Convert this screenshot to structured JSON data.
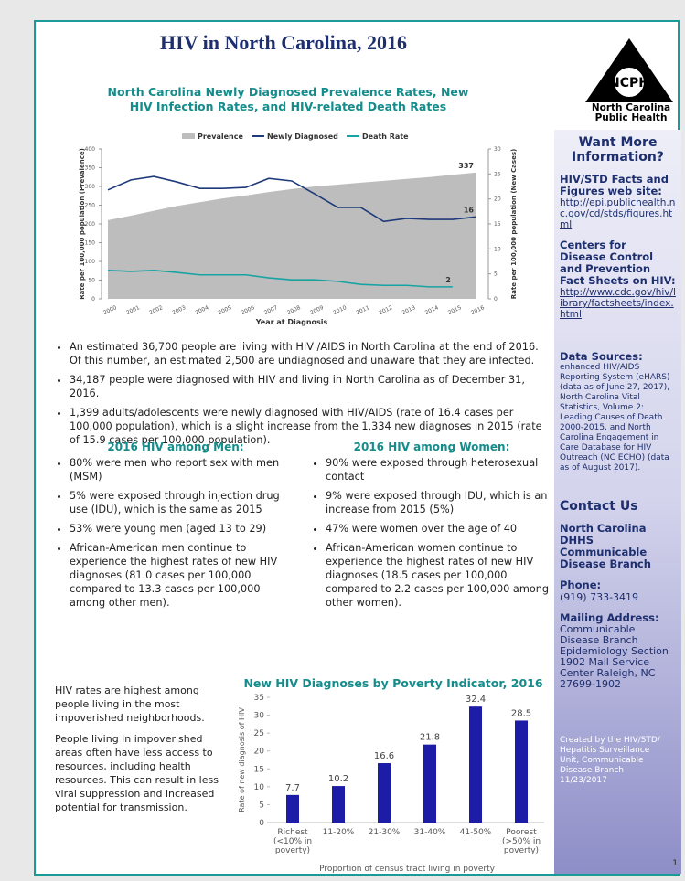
{
  "header": {
    "title": "HIV in North Carolina, 2016"
  },
  "logo": {
    "abbr": "NCPH",
    "name": "North Carolina Public Health"
  },
  "chart_data": [
    {
      "type": "area-line",
      "title": "North Carolina Newly Diagnosed Prevalence Rates, New HIV Infection Rates, and HIV-related Death Rates",
      "x_label": "Year at Diagnosis",
      "y_label": "Rate per 100,000 population (Prevalence)",
      "y2_label": "Rate per 100,000 population (New Cases)",
      "categories": [
        "2000",
        "2001",
        "2002",
        "2003",
        "2004",
        "2005",
        "2006",
        "2007",
        "2008",
        "2009",
        "2010",
        "2011",
        "2012",
        "2013",
        "2014",
        "2015",
        "2016"
      ],
      "series": [
        {
          "name": "Prevalence",
          "kind": "area",
          "color": "#bdbdbd",
          "values": [
            210,
            222,
            235,
            248,
            258,
            268,
            276,
            285,
            293,
            300,
            305,
            310,
            315,
            320,
            325,
            331,
            337
          ]
        },
        {
          "name": "Newly Diagnosed",
          "kind": "line",
          "axis": "y2",
          "color": "#1f3a7a",
          "values": [
            21.8,
            23.8,
            24.5,
            23.4,
            22.1,
            22.1,
            22.3,
            24.1,
            23.6,
            21.0,
            18.3,
            18.3,
            15.5,
            16.1,
            15.9,
            15.9,
            16.4
          ],
          "value_labels": [
            null,
            null,
            null,
            null,
            null,
            null,
            null,
            null,
            null,
            null,
            null,
            null,
            null,
            null,
            null,
            null,
            "16"
          ]
        },
        {
          "name": "Death Rate",
          "kind": "line",
          "axis": "y2",
          "color": "#18a3a3",
          "values": [
            5.7,
            5.5,
            5.7,
            5.3,
            4.8,
            4.8,
            4.8,
            4.2,
            3.8,
            3.8,
            3.5,
            2.9,
            2.7,
            2.7,
            2.4,
            2.4,
            null
          ],
          "value_labels": [
            null,
            null,
            null,
            null,
            null,
            null,
            null,
            null,
            null,
            null,
            null,
            null,
            null,
            null,
            null,
            "2",
            null
          ]
        }
      ],
      "ylim": [
        0,
        400
      ],
      "yticks": [
        0,
        50,
        100,
        150,
        200,
        250,
        300,
        350,
        400
      ],
      "y2lim": [
        0,
        30
      ],
      "y2ticks": [
        0,
        5,
        10,
        15,
        20,
        25,
        30
      ],
      "legend": "top"
    },
    {
      "type": "bar",
      "title": "New HIV Diagnoses by Poverty Indicator, 2016",
      "x_label": "Proportion of census tract living in poverty",
      "y_label": "Rate of new diagnosis of HIV",
      "categories": [
        "Richest (<10% in poverty)",
        "11-20%",
        "21-30%",
        "31-40%",
        "41-50%",
        "Poorest (>50% in poverty)"
      ],
      "values": [
        7.7,
        10.2,
        16.6,
        21.8,
        32.4,
        28.5
      ],
      "color": "#1c1ca6",
      "ylim": [
        0,
        35
      ],
      "yticks": [
        0,
        5,
        10,
        15,
        20,
        25,
        30,
        35
      ]
    }
  ],
  "bullets": [
    "An estimated 36,700 people are living with HIV /AIDS in North Carolina at the end of 2016. Of this number, an estimated 2,500 are undiagnosed and unaware that they are infected.",
    "34,187 people were diagnosed with HIV and living in North Carolina as of December 31, 2016.",
    "1,399 adults/adolescents were newly diagnosed with HIV/AIDS (rate of 16.4 cases per 100,000 population), which is a slight increase from the 1,334 new diagnoses in 2015 (rate of 15.9 cases per 100,000 population)."
  ],
  "men": {
    "title": "2016 HIV among Men:",
    "items": [
      "80% were men who report sex with men (MSM)",
      "5% were exposed through injection drug use (IDU), which is the same as 2015",
      "53% were young men (aged 13 to 29)",
      "African-American men continue to experience the highest rates of new HIV diagnoses (81.0 cases per 100,000 compared to 13.3 cases per 100,000 among other men)."
    ]
  },
  "women": {
    "title": "2016 HIV among Women:",
    "items": [
      "90% were exposed through heterosexual contact",
      "9% were exposed through IDU, which is an increase from 2015 (5%)",
      "47% were women over the age of 40",
      "African-American women continue to experience the highest rates of new HIV diagnoses (18.5 cases per 100,000 compared to 2.2 cases per 100,000 among other women)."
    ]
  },
  "poverty_text": [
    "HIV rates are highest among people living in the most impoverished neighborhoods.",
    "People living in impoverished areas often have less access to resources, including health resources. This can result in less viral suppression and increased potential for transmission."
  ],
  "sidebar": {
    "heading": "Want More Information?",
    "links": [
      {
        "label": "HIV/STD Facts and Figures web site:",
        "url": "http://epi.publichealth.nc.gov/cd/stds/figures.html"
      },
      {
        "label": "Centers for Disease Control and Prevention Fact Sheets on HIV:",
        "url": "http://www.cdc.gov/hiv/library/factsheets/index.html"
      }
    ],
    "sources_label": "Data Sources:",
    "sources": "enhanced HIV/AIDS Reporting System (eHARS) (data as of June 27, 2017), North Carolina Vital Statistics, Volume 2: Leading Causes of Death 2000-2015, and North Carolina Engagement in Care Database for HIV Outreach (NC ECHO) (data as of August 2017).",
    "contact_heading": "Contact Us",
    "org": "North Carolina DHHS Communicable Disease Branch",
    "phone_label": "Phone:",
    "phone": "(919) 733-3419",
    "mail_label": "Mailing Address:",
    "address": "Communicable Disease Branch Epidemiology Section 1902 Mail Service Center Raleigh, NC 27699-1902",
    "credit": "Created by the HIV/STD/ Hepatitis Surveillance Unit, Communicable Disease Branch 11/23/2017",
    "page": "1"
  }
}
